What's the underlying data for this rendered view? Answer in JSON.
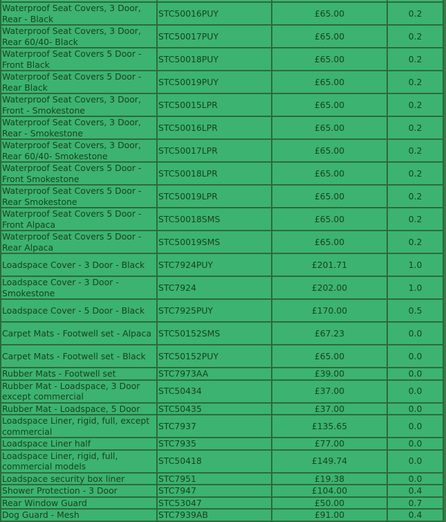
{
  "colors": {
    "cell_bg": "#3cb371",
    "border": "#2c6a3a",
    "text": "#17421f"
  },
  "rows": [
    {
      "desc": "",
      "code": "",
      "price": "",
      "weight": ""
    },
    {
      "desc": "Waterproof Seat Covers, 3 Door, Rear - Black",
      "code": "STC50016PUY",
      "price": "£65.00",
      "weight": "0.2"
    },
    {
      "desc": "Waterproof Seat Covers, 3 Door, Rear 60/40- Black",
      "code": "STC50017PUY",
      "price": "£65.00",
      "weight": "0.2"
    },
    {
      "desc": "Waterproof Seat Covers 5 Door - Front Black",
      "code": "STC50018PUY",
      "price": "£65.00",
      "weight": "0.2"
    },
    {
      "desc": "Waterproof Seat Covers 5 Door - Rear Black",
      "code": "STC50019PUY",
      "price": "£65.00",
      "weight": "0.2"
    },
    {
      "desc": "Waterproof Seat Covers, 3 Door, Front - Smokestone",
      "code": "STC50015LPR",
      "price": "£65.00",
      "weight": "0.2"
    },
    {
      "desc": "Waterproof Seat Covers, 3 Door, Rear - Smokestone",
      "code": "STC50016LPR",
      "price": "£65.00",
      "weight": "0.2"
    },
    {
      "desc": "Waterproof Seat Covers, 3 Door, Rear 60/40- Smokestone",
      "code": "STC50017LPR",
      "price": "£65.00",
      "weight": "0.2"
    },
    {
      "desc": "Waterproof Seat Covers 5 Door - Front Smokestone",
      "code": "STC50018LPR",
      "price": "£65.00",
      "weight": "0.2"
    },
    {
      "desc": "Waterproof Seat Covers 5 Door - Rear Smokestone",
      "code": "STC50019LPR",
      "price": "£65.00",
      "weight": "0.2"
    },
    {
      "desc": "Waterproof Seat Covers 5 Door - Front Alpaca",
      "code": "STC50018SMS",
      "price": "£65.00",
      "weight": "0.2"
    },
    {
      "desc": "Waterproof Seat Covers 5 Door - Rear Alpaca",
      "code": "STC50019SMS",
      "price": "£65.00",
      "weight": "0.2"
    },
    {
      "desc": "Loadspace Cover - 3 Door - Black",
      "code": "STC7924PUY",
      "price": "£201.71",
      "weight": "1.0"
    },
    {
      "desc": "Loadspace Cover - 3 Door - Smokestone",
      "code": "STC7924",
      "price": "£202.00",
      "weight": "1.0"
    },
    {
      "desc": "Loadspace Cover - 5 Door - Black",
      "code": "STC7925PUY",
      "price": "£170.00",
      "weight": "0.5"
    },
    {
      "desc": "Carpet Mats - Footwell set - Alpaca",
      "code": "STC50152SMS",
      "price": "£67.23",
      "weight": "0.0"
    },
    {
      "desc": "Carpet Mats - Footwell set - Black",
      "code": "STC50152PUY",
      "price": "£65.00",
      "weight": "0.0"
    },
    {
      "desc": "Rubber Mats - Footwell set",
      "code": "STC7973AA",
      "price": "£39.00",
      "weight": "0.0"
    },
    {
      "desc": "Rubber Mat - Loadspace, 3 Door except commercial",
      "code": "STC50434",
      "price": "£37.00",
      "weight": "0.0"
    },
    {
      "desc": "Rubber Mat - Loadspace, 5 Door",
      "code": "STC50435",
      "price": "£37.00",
      "weight": "0.0"
    },
    {
      "desc": "Loadspace Liner, rigid, full, except commercial",
      "code": "STC7937",
      "price": "£135.65",
      "weight": "0.0"
    },
    {
      "desc": "Loadspace Liner half",
      "code": "STC7935",
      "price": "£77.00",
      "weight": "0.0"
    },
    {
      "desc": "Loadspace Liner, rigid, full, commercial models",
      "code": "STC50418",
      "price": "£149.74",
      "weight": "0.0"
    },
    {
      "desc": "Loadspace security box liner",
      "code": "STC7951",
      "price": "£19.38",
      "weight": "0.0"
    },
    {
      "desc": "Shower Protection - 3 Door",
      "code": "STC7947",
      "price": "£104.00",
      "weight": "0.4"
    },
    {
      "desc": "Rear Window Guard",
      "code": "STC53047",
      "price": "£50.00",
      "weight": "0.7"
    },
    {
      "desc": "Dog Guard - Mesh",
      "code": "STC7939AB",
      "price": "£91.00",
      "weight": "0.4"
    }
  ]
}
